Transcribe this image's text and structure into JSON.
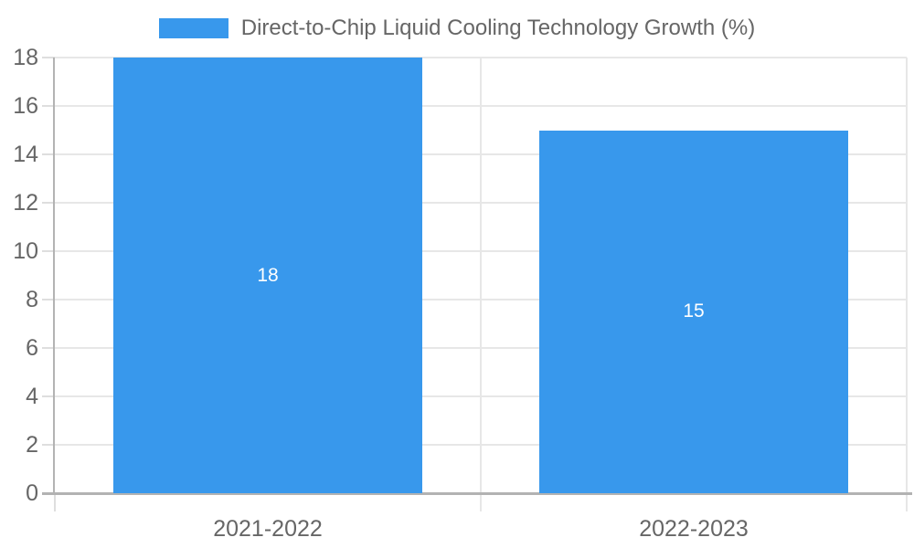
{
  "chart_data": {
    "type": "bar",
    "title": "Direct-to-Chip Liquid Cooling Technology Growth (%)",
    "categories": [
      "2021-2022",
      "2022-2023"
    ],
    "series": [
      {
        "name": "Direct-to-Chip Liquid Cooling Technology Growth (%)",
        "values": [
          18,
          15
        ]
      }
    ],
    "value_labels": [
      "18",
      "15"
    ],
    "xlabel": "",
    "ylabel": "",
    "ylim": [
      0,
      18
    ],
    "yticks": [
      0,
      2,
      4,
      6,
      8,
      10,
      12,
      14,
      16,
      18
    ],
    "grid": true,
    "legend_position": "top",
    "colors": {
      "bar": "#3898ec",
      "value_label": "#ffffff",
      "tick_label": "#666666",
      "legend_label": "#666666",
      "axis_line": "#b3b3b3",
      "gridline": "#e7e7e7",
      "tick_mark": "#dedede",
      "background": "#ffffff"
    }
  }
}
